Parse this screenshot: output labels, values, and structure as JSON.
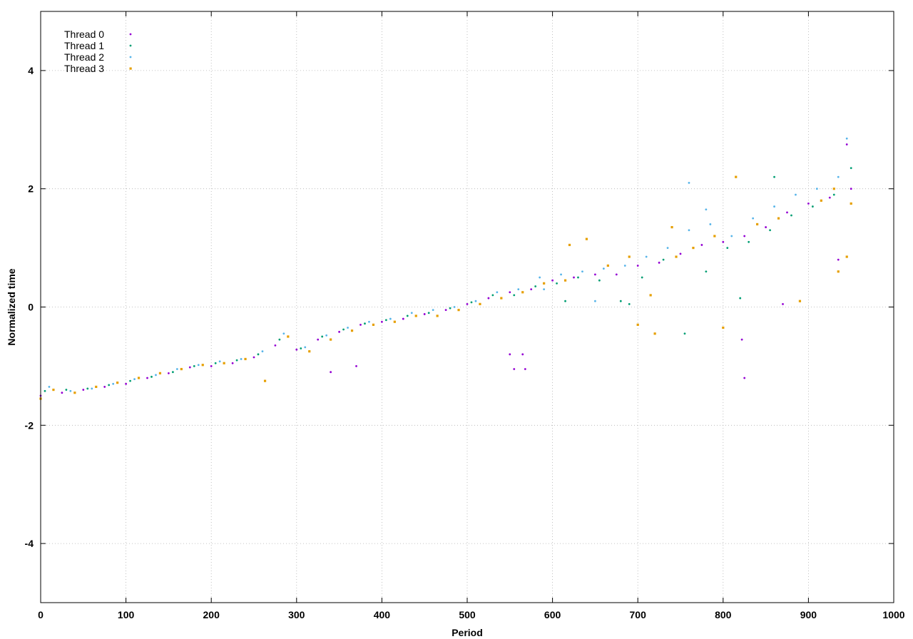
{
  "chart_data": {
    "type": "scatter",
    "title": "",
    "xlabel": "Period",
    "ylabel": "Normalized time",
    "xlim": [
      0,
      1000
    ],
    "ylim": [
      -5,
      5
    ],
    "x_ticks": [
      0,
      100,
      200,
      300,
      400,
      500,
      600,
      700,
      800,
      900,
      1000
    ],
    "y_ticks": [
      -4,
      -2,
      0,
      2,
      4
    ],
    "x_tick_labels": [
      "0",
      "100",
      "200",
      "300",
      "400",
      "500",
      "600",
      "700",
      "800",
      "900",
      "1000"
    ],
    "y_tick_labels": [
      "-4",
      "-2",
      "0",
      "2",
      "4"
    ],
    "grid": true,
    "legend_position": "top-left",
    "series": [
      {
        "name": "Thread 0",
        "color": "#9400d3",
        "marker": "dot",
        "points": [
          [
            0,
            -1.5
          ],
          [
            25,
            -1.45
          ],
          [
            50,
            -1.4
          ],
          [
            75,
            -1.35
          ],
          [
            100,
            -1.3
          ],
          [
            125,
            -1.2
          ],
          [
            150,
            -1.12
          ],
          [
            175,
            -1.02
          ],
          [
            200,
            -1.0
          ],
          [
            225,
            -0.95
          ],
          [
            250,
            -0.85
          ],
          [
            275,
            -0.65
          ],
          [
            300,
            -0.72
          ],
          [
            325,
            -0.55
          ],
          [
            350,
            -0.42
          ],
          [
            375,
            -0.3
          ],
          [
            400,
            -0.25
          ],
          [
            425,
            -0.2
          ],
          [
            450,
            -0.12
          ],
          [
            475,
            -0.05
          ],
          [
            500,
            0.05
          ],
          [
            525,
            0.15
          ],
          [
            550,
            0.25
          ],
          [
            575,
            0.3
          ],
          [
            600,
            0.45
          ],
          [
            625,
            0.5
          ],
          [
            650,
            0.55
          ],
          [
            675,
            0.55
          ],
          [
            700,
            0.7
          ],
          [
            725,
            0.75
          ],
          [
            750,
            0.9
          ],
          [
            775,
            1.05
          ],
          [
            800,
            1.1
          ],
          [
            825,
            1.2
          ],
          [
            850,
            1.35
          ],
          [
            875,
            1.6
          ],
          [
            900,
            1.75
          ],
          [
            925,
            1.85
          ],
          [
            950,
            2.0
          ],
          [
            340,
            -1.1
          ],
          [
            370,
            -1.0
          ],
          [
            550,
            -0.8
          ],
          [
            555,
            -1.05
          ],
          [
            565,
            -0.8
          ],
          [
            568,
            -1.05
          ],
          [
            822,
            -0.55
          ],
          [
            825,
            -1.2
          ],
          [
            870,
            0.05
          ],
          [
            935,
            0.8
          ],
          [
            945,
            2.75
          ]
        ]
      },
      {
        "name": "Thread 1",
        "color": "#009e73",
        "marker": "dot",
        "points": [
          [
            5,
            -1.42
          ],
          [
            30,
            -1.4
          ],
          [
            55,
            -1.38
          ],
          [
            80,
            -1.32
          ],
          [
            105,
            -1.25
          ],
          [
            130,
            -1.18
          ],
          [
            155,
            -1.1
          ],
          [
            180,
            -1.0
          ],
          [
            205,
            -0.95
          ],
          [
            230,
            -0.9
          ],
          [
            255,
            -0.8
          ],
          [
            280,
            -0.55
          ],
          [
            305,
            -0.7
          ],
          [
            330,
            -0.5
          ],
          [
            355,
            -0.38
          ],
          [
            380,
            -0.28
          ],
          [
            405,
            -0.22
          ],
          [
            430,
            -0.15
          ],
          [
            455,
            -0.1
          ],
          [
            480,
            -0.02
          ],
          [
            505,
            0.08
          ],
          [
            530,
            0.2
          ],
          [
            555,
            0.2
          ],
          [
            580,
            0.35
          ],
          [
            605,
            0.4
          ],
          [
            630,
            0.5
          ],
          [
            655,
            0.45
          ],
          [
            680,
            0.1
          ],
          [
            705,
            0.5
          ],
          [
            730,
            0.8
          ],
          [
            755,
            -0.45
          ],
          [
            780,
            0.6
          ],
          [
            805,
            1.0
          ],
          [
            830,
            1.1
          ],
          [
            855,
            1.3
          ],
          [
            880,
            1.55
          ],
          [
            905,
            1.7
          ],
          [
            930,
            1.9
          ],
          [
            950,
            2.35
          ],
          [
            615,
            0.1
          ],
          [
            690,
            0.05
          ],
          [
            820,
            0.15
          ],
          [
            860,
            2.2
          ]
        ]
      },
      {
        "name": "Thread 2",
        "color": "#56b4e9",
        "marker": "dot",
        "points": [
          [
            10,
            -1.35
          ],
          [
            35,
            -1.42
          ],
          [
            60,
            -1.38
          ],
          [
            85,
            -1.3
          ],
          [
            110,
            -1.22
          ],
          [
            135,
            -1.15
          ],
          [
            160,
            -1.05
          ],
          [
            185,
            -0.98
          ],
          [
            210,
            -0.92
          ],
          [
            235,
            -0.88
          ],
          [
            260,
            -0.75
          ],
          [
            285,
            -0.45
          ],
          [
            310,
            -0.68
          ],
          [
            335,
            -0.48
          ],
          [
            360,
            -0.35
          ],
          [
            385,
            -0.25
          ],
          [
            410,
            -0.2
          ],
          [
            435,
            -0.1
          ],
          [
            460,
            -0.05
          ],
          [
            485,
            0.0
          ],
          [
            510,
            0.1
          ],
          [
            535,
            0.25
          ],
          [
            560,
            0.3
          ],
          [
            585,
            0.5
          ],
          [
            610,
            0.55
          ],
          [
            635,
            0.6
          ],
          [
            660,
            0.65
          ],
          [
            685,
            0.7
          ],
          [
            710,
            0.85
          ],
          [
            735,
            1.0
          ],
          [
            760,
            1.3
          ],
          [
            785,
            1.4
          ],
          [
            810,
            1.2
          ],
          [
            835,
            1.5
          ],
          [
            860,
            1.7
          ],
          [
            885,
            1.9
          ],
          [
            910,
            2.0
          ],
          [
            935,
            2.2
          ],
          [
            945,
            2.85
          ],
          [
            760,
            2.1
          ],
          [
            590,
            0.3
          ],
          [
            650,
            0.1
          ],
          [
            780,
            1.65
          ]
        ]
      },
      {
        "name": "Thread 3",
        "color": "#e69f00",
        "marker": "square",
        "points": [
          [
            0,
            -1.55
          ],
          [
            15,
            -1.4
          ],
          [
            40,
            -1.45
          ],
          [
            65,
            -1.35
          ],
          [
            90,
            -1.28
          ],
          [
            115,
            -1.2
          ],
          [
            140,
            -1.12
          ],
          [
            165,
            -1.05
          ],
          [
            190,
            -0.98
          ],
          [
            215,
            -0.95
          ],
          [
            240,
            -0.88
          ],
          [
            263,
            -1.25
          ],
          [
            290,
            -0.5
          ],
          [
            315,
            -0.75
          ],
          [
            340,
            -0.55
          ],
          [
            365,
            -0.4
          ],
          [
            390,
            -0.3
          ],
          [
            415,
            -0.25
          ],
          [
            440,
            -0.15
          ],
          [
            465,
            -0.15
          ],
          [
            490,
            -0.05
          ],
          [
            515,
            0.05
          ],
          [
            540,
            0.15
          ],
          [
            565,
            0.25
          ],
          [
            590,
            0.4
          ],
          [
            615,
            0.45
          ],
          [
            640,
            1.15
          ],
          [
            665,
            0.7
          ],
          [
            690,
            0.85
          ],
          [
            715,
            0.2
          ],
          [
            720,
            -0.45
          ],
          [
            740,
            1.35
          ],
          [
            765,
            1.0
          ],
          [
            790,
            1.2
          ],
          [
            800,
            -0.35
          ],
          [
            815,
            2.2
          ],
          [
            840,
            1.4
          ],
          [
            865,
            1.5
          ],
          [
            890,
            0.1
          ],
          [
            915,
            1.8
          ],
          [
            930,
            2.0
          ],
          [
            950,
            1.75
          ],
          [
            620,
            1.05
          ],
          [
            700,
            -0.3
          ],
          [
            745,
            0.85
          ],
          [
            935,
            0.6
          ],
          [
            945,
            0.85
          ]
        ]
      }
    ]
  }
}
